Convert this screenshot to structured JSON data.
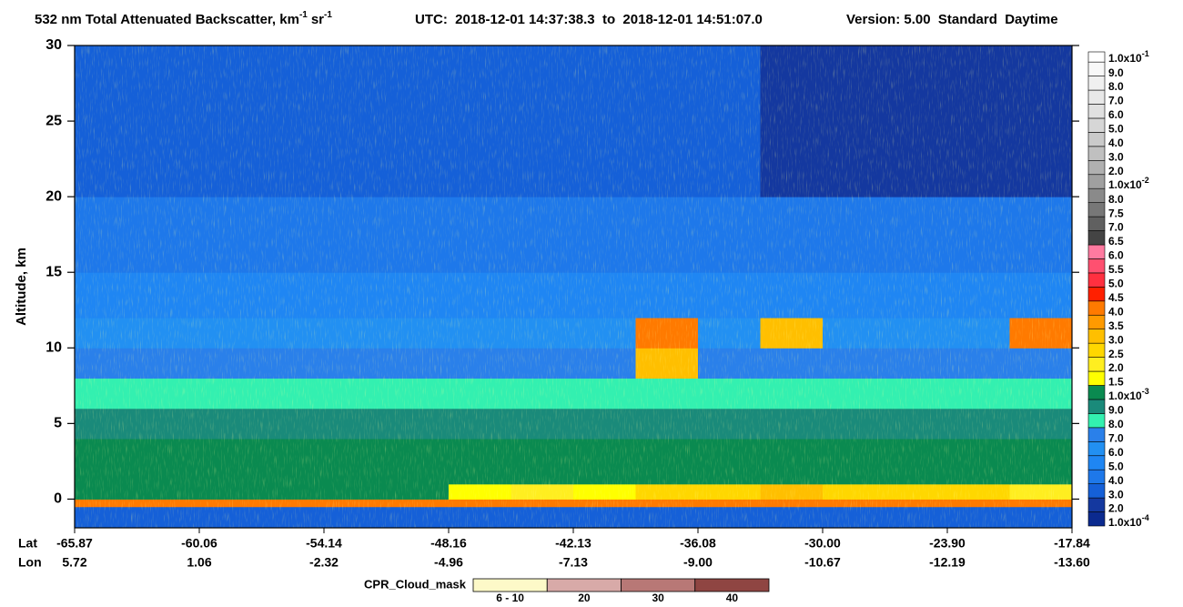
{
  "chart_data": {
    "type": "heatmap",
    "title": {
      "main": "532 nm Total Attenuated Backscatter, km",
      "sup1": "-1",
      "unit2": "sr",
      "sup2": "-1"
    },
    "time_range": "UTC:  2018-12-01 14:37:38.3  to  2018-12-01 14:51:07.0",
    "version": "Version: 5.00  Standard  Daytime",
    "y_label": "Altitude, km",
    "ylim": [
      -1.9,
      30
    ],
    "yticks": [
      0,
      5,
      10,
      15,
      20,
      25,
      30
    ],
    "x_rows": [
      {
        "name": "Lat",
        "labels": [
          "-65.87",
          "-60.06",
          "-54.14",
          "-48.16",
          "-42.13",
          "-36.08",
          "-30.00",
          "-23.90",
          "-17.84"
        ]
      },
      {
        "name": "Lon",
        "labels": [
          "5.72",
          "1.06",
          "-2.32",
          "-4.96",
          "-7.13",
          "-9.00",
          "-10.67",
          "-12.19",
          "-13.60"
        ]
      }
    ],
    "y_edges": [
      -1.9,
      -0.5,
      0,
      1,
      2,
      4,
      6,
      8,
      10,
      12,
      15,
      20,
      30
    ],
    "z": [
      [
        0.0003,
        0.0003,
        0.0003,
        0.0003,
        0.0003,
        0.0003,
        0.0003,
        0.0003,
        0.0003,
        0.0003,
        0.0003,
        0.0003,
        0.0003,
        0.0003,
        0.0003,
        0.0003
      ],
      [
        0.004,
        0.004,
        0.004,
        0.004,
        0.004,
        0.004,
        0.004,
        0.004,
        0.004,
        0.004,
        0.004,
        0.004,
        0.004,
        0.004,
        0.004,
        0.004
      ],
      [
        0.0012,
        0.0012,
        0.0012,
        0.0012,
        0.0012,
        0.0012,
        0.0016,
        0.002,
        0.0018,
        0.0025,
        0.0025,
        0.003,
        0.0025,
        0.0025,
        0.0025,
        0.002
      ],
      [
        0.0011,
        0.0014,
        0.0011,
        0.0014,
        0.0011,
        0.0011,
        0.0014,
        0.0011,
        0.0011,
        0.0011,
        0.0011,
        0.0011,
        0.0011,
        0.0011,
        0.0011,
        0.0011
      ],
      [
        0.001,
        0.001,
        0.001,
        0.001,
        0.001,
        0.001,
        0.001,
        0.001,
        0.001,
        0.001,
        0.001,
        0.001,
        0.001,
        0.001,
        0.001,
        0.001
      ],
      [
        0.0009,
        0.0009,
        0.0009,
        0.0009,
        0.0009,
        0.0009,
        0.0009,
        0.0009,
        0.0009,
        0.0009,
        0.0009,
        0.0009,
        0.0009,
        0.0009,
        0.0009,
        0.0009
      ],
      [
        0.0008,
        0.0008,
        0.0008,
        0.0008,
        0.0008,
        0.0008,
        0.0008,
        0.0008,
        0.0008,
        0.0008,
        0.0008,
        0.0008,
        0.0008,
        0.0008,
        0.0008,
        0.0008
      ],
      [
        0.0007,
        0.0007,
        0.0007,
        0.0007,
        0.0007,
        0.0007,
        0.0007,
        0.0007,
        0.0007,
        0.003,
        0.0007,
        0.0007,
        0.0007,
        0.0007,
        0.0007,
        0.0007
      ],
      [
        0.0006,
        0.0006,
        0.0006,
        0.0006,
        0.0006,
        0.0006,
        0.0006,
        0.0006,
        0.0006,
        0.004,
        0.0006,
        0.003,
        0.0006,
        0.0006,
        0.0006,
        0.004
      ],
      [
        0.0005,
        0.0005,
        0.0005,
        0.0005,
        0.0005,
        0.0005,
        0.0005,
        0.0005,
        0.0005,
        0.0005,
        0.0005,
        0.0005,
        0.0005,
        0.0005,
        0.0005,
        0.0005
      ],
      [
        0.0004,
        0.0004,
        0.0004,
        0.0004,
        0.0004,
        0.0004,
        0.0004,
        0.0004,
        0.0004,
        0.0004,
        0.0004,
        0.0004,
        0.0004,
        0.0004,
        0.0004,
        0.0004
      ],
      [
        0.0003,
        0.0003,
        0.0003,
        0.0003,
        0.0003,
        0.0003,
        0.0003,
        0.0003,
        0.0003,
        0.0003,
        0.0003,
        0.00025,
        0.00025,
        0.00025,
        0.00025,
        0.00025
      ]
    ],
    "colorbar": [
      {
        "value": 0.0001,
        "label": "1.0x10-4",
        "color": "#0b2a8f"
      },
      {
        "value": 0.0002,
        "label": "2.0",
        "color": "#14389f"
      },
      {
        "value": 0.0003,
        "label": "3.0",
        "color": "#1560d8"
      },
      {
        "value": 0.0004,
        "label": "4.0",
        "color": "#1e78ea"
      },
      {
        "value": 0.0005,
        "label": "5.0",
        "color": "#1f86f3"
      },
      {
        "value": 0.0006,
        "label": "6.0",
        "color": "#2290f2"
      },
      {
        "value": 0.0007,
        "label": "7.0",
        "color": "#2a80ea"
      },
      {
        "value": 0.0008,
        "label": "8.0",
        "color": "#33f0b0"
      },
      {
        "value": 0.0009,
        "label": "9.0",
        "color": "#1a8a7a"
      },
      {
        "value": 0.001,
        "label": "1.0x10-3",
        "color": "#0a8a50"
      },
      {
        "value": 0.0015,
        "label": "1.5",
        "color": "#ffff00"
      },
      {
        "value": 0.002,
        "label": "2.0",
        "color": "#ffee20"
      },
      {
        "value": 0.0025,
        "label": "2.5",
        "color": "#ffd700"
      },
      {
        "value": 0.003,
        "label": "3.0",
        "color": "#ffbf00"
      },
      {
        "value": 0.0035,
        "label": "3.5",
        "color": "#ff9a00"
      },
      {
        "value": 0.004,
        "label": "4.0",
        "color": "#ff7a00"
      },
      {
        "value": 0.0045,
        "label": "4.5",
        "color": "#ff2000"
      },
      {
        "value": 0.005,
        "label": "5.0",
        "color": "#ff3040"
      },
      {
        "value": 0.0055,
        "label": "5.5",
        "color": "#ff5070"
      },
      {
        "value": 0.006,
        "label": "6.0",
        "color": "#ff7aa0"
      },
      {
        "value": 0.0065,
        "label": "6.5",
        "color": "#444444"
      },
      {
        "value": 0.007,
        "label": "7.0",
        "color": "#606060"
      },
      {
        "value": 0.0075,
        "label": "7.5",
        "color": "#777777"
      },
      {
        "value": 0.008,
        "label": "8.0",
        "color": "#8a8a8a"
      },
      {
        "value": 0.01,
        "label": "1.0x10-2",
        "color": "#a0a0a0"
      },
      {
        "value": 0.02,
        "label": "2.0",
        "color": "#b0b0b0"
      },
      {
        "value": 0.03,
        "label": "3.0",
        "color": "#c0c0c0"
      },
      {
        "value": 0.04,
        "label": "4.0",
        "color": "#cacaca"
      },
      {
        "value": 0.05,
        "label": "5.0",
        "color": "#d6d6d6"
      },
      {
        "value": 0.06,
        "label": "6.0",
        "color": "#e0e0e0"
      },
      {
        "value": 0.07,
        "label": "7.0",
        "color": "#e8e8e8"
      },
      {
        "value": 0.08,
        "label": "8.0",
        "color": "#f0f0f0"
      },
      {
        "value": 0.09,
        "label": "9.0",
        "color": "#f8f8f8"
      },
      {
        "value": 0.1,
        "label": "1.0x10-1",
        "color": "#ffffff"
      }
    ],
    "cpr_legend": {
      "title": "CPR_Cloud_mask",
      "items": [
        {
          "label": "6 - 10",
          "color": "#fdf9c8"
        },
        {
          "label": "20",
          "color": "#d8aaa8"
        },
        {
          "label": "30",
          "color": "#b87876"
        },
        {
          "label": "40",
          "color": "#8f4542"
        }
      ]
    }
  }
}
